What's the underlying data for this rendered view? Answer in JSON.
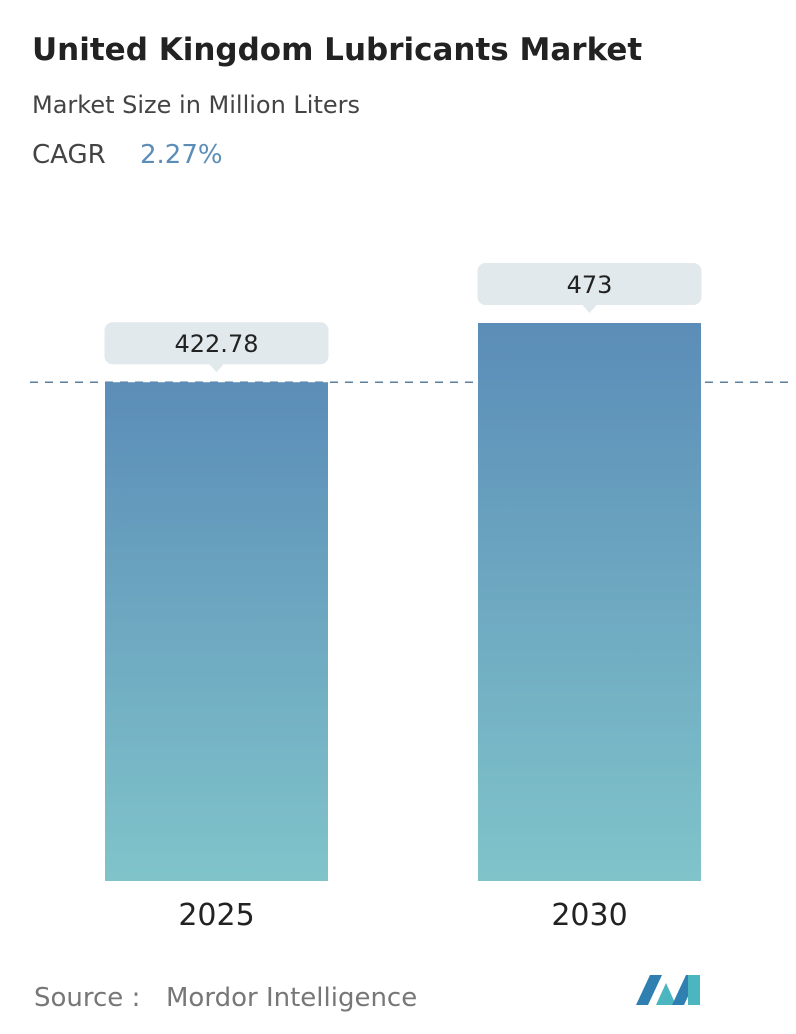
{
  "chart_data": {
    "type": "bar",
    "title": "United Kingdom Lubricants Market",
    "subtitle": "Market Size in Million Liters",
    "cagr_label": "CAGR",
    "cagr": "2.27%",
    "categories": [
      "2025",
      "2030"
    ],
    "values": [
      422.78,
      473
    ],
    "source_label": "Source :",
    "source": "Mordor Intelligence"
  }
}
